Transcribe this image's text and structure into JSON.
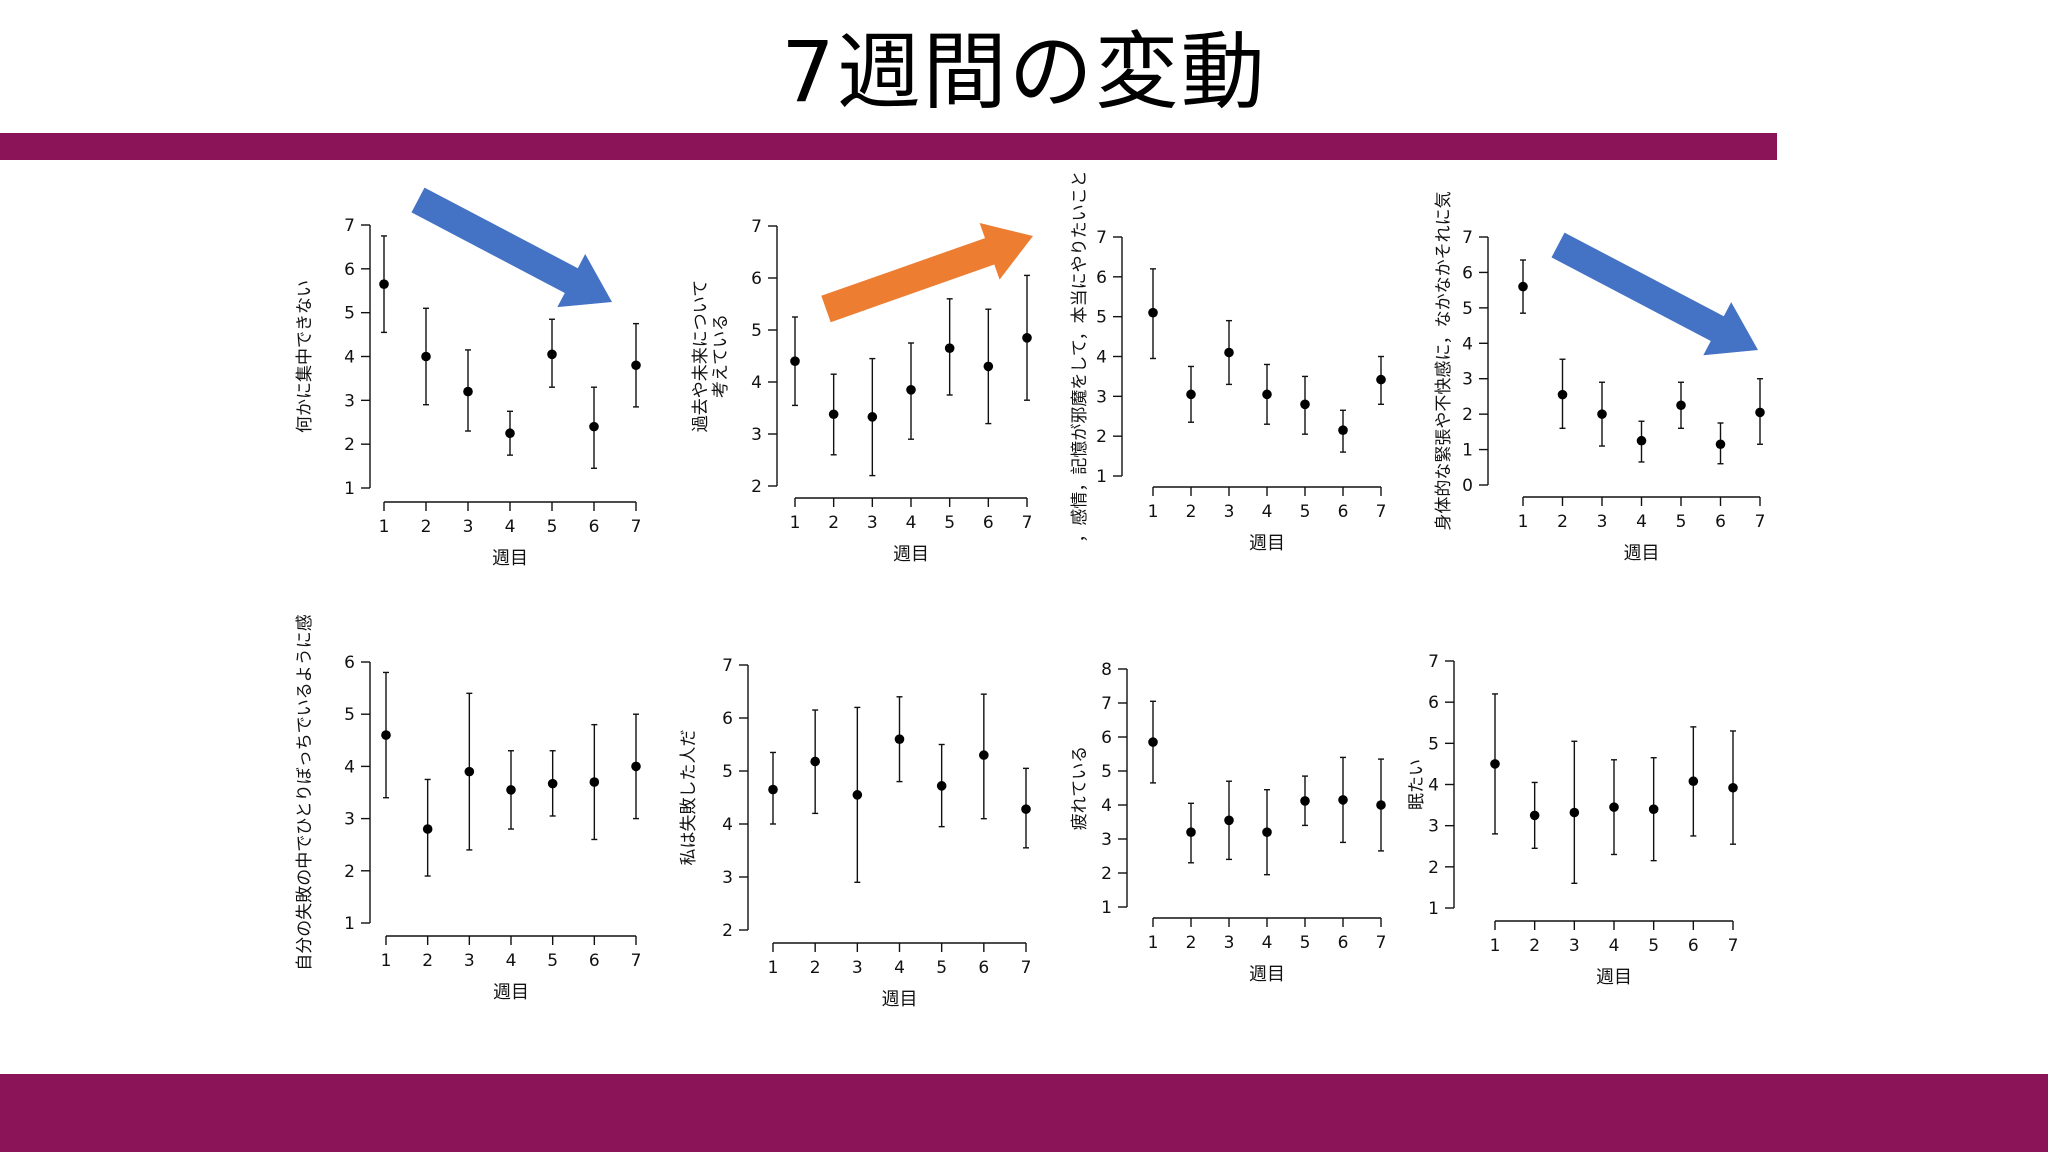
{
  "slide": {
    "title": "7週間の変動",
    "band_color": "#8b1458"
  },
  "arrows": [
    {
      "chart": 0,
      "direction": "down",
      "color": "#4472c4"
    },
    {
      "chart": 1,
      "direction": "up",
      "color": "#ed7d31"
    },
    {
      "chart": 3,
      "direction": "down",
      "color": "#4472c4"
    }
  ],
  "chart_data": [
    {
      "type": "scatter",
      "error_bars": true,
      "ylabel": "何かに集中できない",
      "xlabel": "週目",
      "x": [
        1,
        2,
        3,
        4,
        5,
        6,
        7
      ],
      "ylim": [
        1,
        7
      ],
      "yticks": [
        1,
        2,
        3,
        4,
        5,
        6,
        7
      ],
      "values": [
        5.65,
        4.0,
        3.2,
        2.25,
        4.05,
        2.4,
        3.8
      ],
      "lower": [
        4.55,
        2.9,
        2.3,
        1.75,
        3.3,
        1.45,
        2.85
      ],
      "upper": [
        6.75,
        5.1,
        4.15,
        2.75,
        4.85,
        3.3,
        4.75
      ]
    },
    {
      "type": "scatter",
      "error_bars": true,
      "ylabel": "過去や未来について\n考えている",
      "xlabel": "週目",
      "x": [
        1,
        2,
        3,
        4,
        5,
        6,
        7
      ],
      "ylim": [
        2,
        7
      ],
      "yticks": [
        2,
        3,
        4,
        5,
        6,
        7
      ],
      "values": [
        4.4,
        3.38,
        3.33,
        3.85,
        4.65,
        4.3,
        4.85
      ],
      "lower": [
        3.55,
        2.6,
        2.2,
        2.9,
        3.75,
        3.2,
        3.65
      ],
      "upper": [
        5.25,
        4.15,
        4.45,
        4.75,
        5.6,
        5.4,
        6.05
      ]
    },
    {
      "type": "scatter",
      "error_bars": true,
      "ylabel": "，感情，記憶が邪魔をして，本当にやりたいこと",
      "xlabel": "週目",
      "x": [
        1,
        2,
        3,
        4,
        5,
        6,
        7
      ],
      "ylim": [
        1,
        7
      ],
      "yticks": [
        1,
        2,
        3,
        4,
        5,
        6,
        7
      ],
      "values": [
        5.1,
        3.05,
        4.1,
        3.05,
        2.8,
        2.15,
        3.42
      ],
      "lower": [
        3.95,
        2.35,
        3.3,
        2.3,
        2.05,
        1.6,
        2.8
      ],
      "upper": [
        6.2,
        3.75,
        4.9,
        3.8,
        3.5,
        2.65,
        4.0
      ]
    },
    {
      "type": "scatter",
      "error_bars": true,
      "ylabel": "身体的な緊張や不快感に，なかなかそれに気",
      "xlabel": "週目",
      "x": [
        1,
        2,
        3,
        4,
        5,
        6,
        7
      ],
      "ylim": [
        0,
        7
      ],
      "yticks": [
        0,
        1,
        2,
        3,
        4,
        5,
        6,
        7
      ],
      "values": [
        5.6,
        2.55,
        2.0,
        1.25,
        2.25,
        1.15,
        2.05
      ],
      "lower": [
        4.85,
        1.6,
        1.1,
        0.65,
        1.6,
        0.6,
        1.15
      ],
      "upper": [
        6.35,
        3.55,
        2.9,
        1.8,
        2.9,
        1.75,
        3.0
      ]
    },
    {
      "type": "scatter",
      "error_bars": true,
      "ylabel": "自分の失敗の中でひとりぼっちでいるように感",
      "xlabel": "週目",
      "x": [
        1,
        2,
        3,
        4,
        5,
        6,
        7
      ],
      "ylim": [
        1,
        6
      ],
      "yticks": [
        1,
        2,
        3,
        4,
        5,
        6
      ],
      "values": [
        4.6,
        2.8,
        3.9,
        3.55,
        3.67,
        3.7,
        4.0
      ],
      "lower": [
        3.4,
        1.9,
        2.4,
        2.8,
        3.05,
        2.6,
        3.0
      ],
      "upper": [
        5.8,
        3.75,
        5.4,
        4.3,
        4.3,
        4.8,
        5.0
      ]
    },
    {
      "type": "scatter",
      "error_bars": true,
      "ylabel": "私は失敗した人だ",
      "xlabel": "週目",
      "x": [
        1,
        2,
        3,
        4,
        5,
        6,
        7
      ],
      "ylim": [
        2,
        7
      ],
      "yticks": [
        2,
        3,
        4,
        5,
        6,
        7
      ],
      "values": [
        4.65,
        5.18,
        4.55,
        5.6,
        4.72,
        5.3,
        4.28
      ],
      "lower": [
        4.0,
        4.2,
        2.9,
        4.8,
        3.95,
        4.1,
        3.55
      ],
      "upper": [
        5.35,
        6.15,
        6.2,
        6.4,
        5.5,
        6.45,
        5.05
      ]
    },
    {
      "type": "scatter",
      "error_bars": true,
      "ylabel": "疲れている",
      "xlabel": "週目",
      "x": [
        1,
        2,
        3,
        4,
        5,
        6,
        7
      ],
      "ylim": [
        1,
        8
      ],
      "yticks": [
        1,
        2,
        3,
        4,
        5,
        6,
        7,
        8
      ],
      "values": [
        5.85,
        3.2,
        3.55,
        3.2,
        4.12,
        4.15,
        4.0
      ],
      "lower": [
        4.65,
        2.3,
        2.4,
        1.95,
        3.4,
        2.9,
        2.65
      ],
      "upper": [
        7.05,
        4.05,
        4.7,
        4.45,
        4.85,
        5.4,
        5.35
      ]
    },
    {
      "type": "scatter",
      "error_bars": true,
      "ylabel": "眠たい",
      "xlabel": "週目",
      "x": [
        1,
        2,
        3,
        4,
        5,
        6,
        7
      ],
      "ylim": [
        1,
        7
      ],
      "yticks": [
        1,
        2,
        3,
        4,
        5,
        6,
        7
      ],
      "values": [
        4.5,
        3.25,
        3.32,
        3.45,
        3.4,
        4.08,
        3.92
      ],
      "lower": [
        2.8,
        2.45,
        1.6,
        2.3,
        2.15,
        2.75,
        2.55
      ],
      "upper": [
        6.2,
        4.05,
        5.05,
        4.6,
        4.65,
        5.4,
        5.3
      ]
    }
  ]
}
